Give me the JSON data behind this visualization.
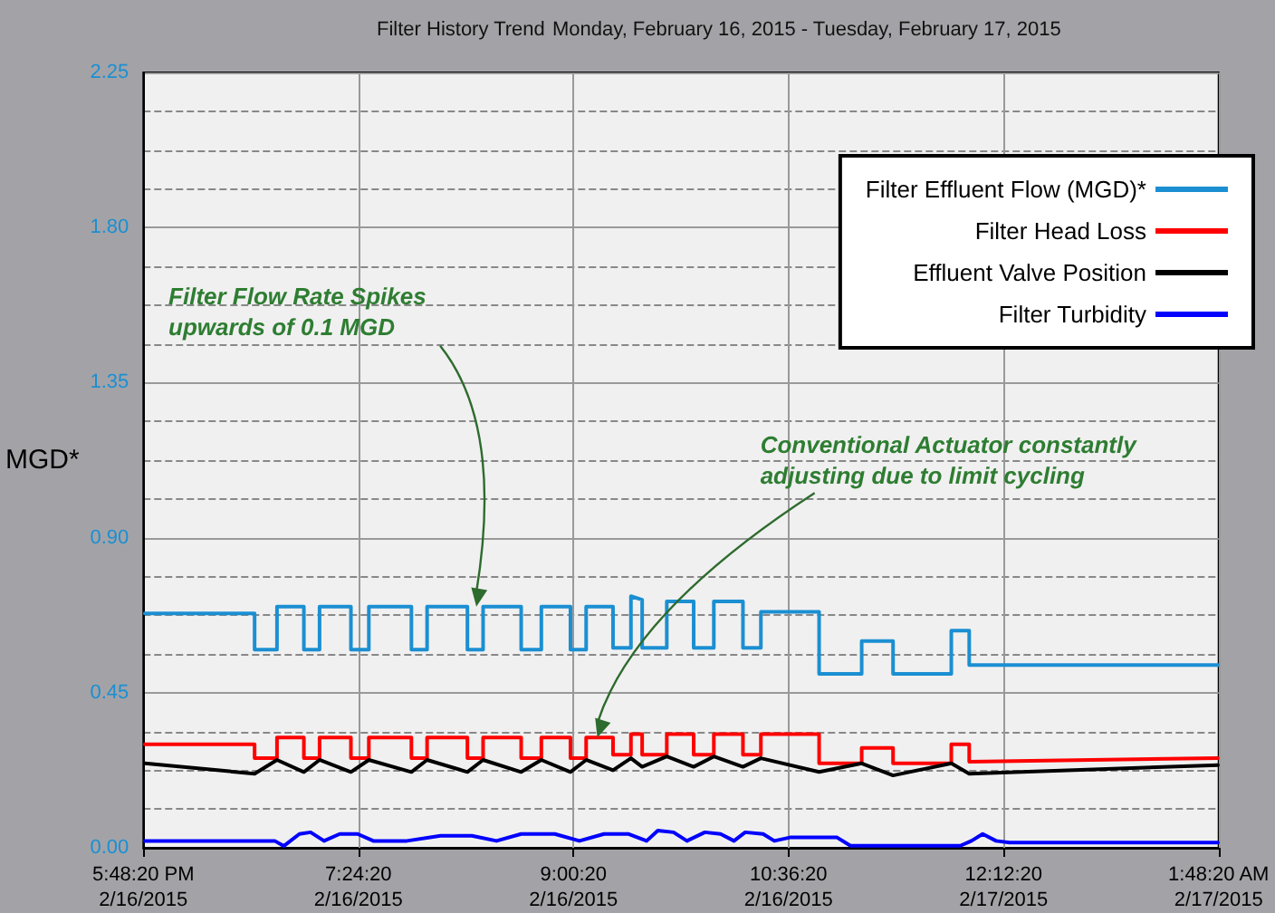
{
  "chart_data": {
    "type": "line",
    "title": "Filter History Trend",
    "subtitle": "Monday, February 16, 2015 - Tuesday, February 17, 2015",
    "ylabel": "MGD*",
    "xlim": [
      "2015-02-16T17:48:20",
      "2015-02-17T01:48:20"
    ],
    "xticks": [
      {
        "value": "2015-02-16T17:48:20",
        "label": "5:48:20 PM\n2/16/2015"
      },
      {
        "value": "2015-02-16T19:24:20",
        "label": "7:24:20\n2/16/2015"
      },
      {
        "value": "2015-02-16T21:00:20",
        "label": "9:00:20\n2/16/2015"
      },
      {
        "value": "2015-02-16T22:36:20",
        "label": "10:36:20\n2/16/2015"
      },
      {
        "value": "2015-02-17T00:12:20",
        "label": "12:12:20\n2/17/2015"
      },
      {
        "value": "2015-02-17T01:48:20",
        "label": "1:48:20 AM\n2/17/2015"
      }
    ],
    "ylim": [
      0,
      2.25
    ],
    "yticks": [
      {
        "value": 0,
        "label": "0.00"
      },
      {
        "value": 0.45,
        "label": "0.45"
      },
      {
        "value": 0.9,
        "label": "0.90"
      },
      {
        "value": 1.35,
        "label": "1.35"
      },
      {
        "value": 1.8,
        "label": "1.80"
      },
      {
        "value": 2.25,
        "label": "2.25"
      }
    ],
    "grid": true,
    "legend": "top right",
    "marker": "none",
    "line_style": "solid",
    "annotations": [
      {
        "text": "Filter Flow Rate Spikes upwards of 0.1 MGD",
        "x": "2015-02-16T20:17",
        "y": 0.7
      },
      {
        "text": "Conventional Actuator constantly adjusting due to limit cycling",
        "x": "2015-02-16T21:11",
        "y": 0.32
      }
    ],
    "series": [
      {
        "name": "Filter Effluent Flow (MGD)*",
        "color": "#1b8fd2",
        "x": [
          "2015-02-16T17:49",
          "2015-02-16T18:38",
          "2015-02-16T18:38",
          "2015-02-16T18:48",
          "2015-02-16T18:48",
          "2015-02-16T19:00",
          "2015-02-16T19:00",
          "2015-02-16T19:07",
          "2015-02-16T19:07",
          "2015-02-16T19:21",
          "2015-02-16T19:21",
          "2015-02-16T19:29",
          "2015-02-16T19:29",
          "2015-02-16T19:48",
          "2015-02-16T19:48",
          "2015-02-16T19:55",
          "2015-02-16T19:55",
          "2015-02-16T20:13",
          "2015-02-16T20:13",
          "2015-02-16T20:20",
          "2015-02-16T20:20",
          "2015-02-16T20:37",
          "2015-02-16T20:37",
          "2015-02-16T20:46",
          "2015-02-16T20:46",
          "2015-02-16T20:59",
          "2015-02-16T20:59",
          "2015-02-16T21:06",
          "2015-02-16T21:06",
          "2015-02-16T21:18",
          "2015-02-16T21:18",
          "2015-02-16T21:26",
          "2015-02-16T21:26",
          "2015-02-16T21:31",
          "2015-02-16T21:31",
          "2015-02-16T21:42",
          "2015-02-16T21:42",
          "2015-02-16T21:54",
          "2015-02-16T21:54",
          "2015-02-16T22:03",
          "2015-02-16T22:03",
          "2015-02-16T22:16",
          "2015-02-16T22:16",
          "2015-02-16T22:24",
          "2015-02-16T22:24",
          "2015-02-16T22:50",
          "2015-02-16T22:50",
          "2015-02-16T23:09",
          "2015-02-16T23:09",
          "2015-02-16T23:23",
          "2015-02-16T23:23",
          "2015-02-16T23:49",
          "2015-02-16T23:49",
          "2015-02-16T23:57",
          "2015-02-16T23:57",
          "2015-02-17T01:48"
        ],
        "values": [
          0.68,
          0.68,
          0.575,
          0.575,
          0.7,
          0.7,
          0.575,
          0.575,
          0.7,
          0.7,
          0.575,
          0.575,
          0.7,
          0.7,
          0.575,
          0.575,
          0.7,
          0.7,
          0.575,
          0.575,
          0.7,
          0.7,
          0.575,
          0.575,
          0.7,
          0.7,
          0.575,
          0.575,
          0.7,
          0.7,
          0.58,
          0.58,
          0.73,
          0.72,
          0.58,
          0.58,
          0.715,
          0.715,
          0.58,
          0.58,
          0.715,
          0.715,
          0.58,
          0.58,
          0.685,
          0.685,
          0.505,
          0.505,
          0.6,
          0.6,
          0.505,
          0.505,
          0.63,
          0.63,
          0.53,
          0.53
        ]
      },
      {
        "name": "Filter Head Loss",
        "color": "#ff0000",
        "x": [
          "2015-02-16T17:49",
          "2015-02-16T18:38",
          "2015-02-16T18:38",
          "2015-02-16T18:48",
          "2015-02-16T18:48",
          "2015-02-16T19:00",
          "2015-02-16T19:00",
          "2015-02-16T19:07",
          "2015-02-16T19:07",
          "2015-02-16T19:21",
          "2015-02-16T19:21",
          "2015-02-16T19:29",
          "2015-02-16T19:29",
          "2015-02-16T19:48",
          "2015-02-16T19:48",
          "2015-02-16T19:55",
          "2015-02-16T19:55",
          "2015-02-16T20:13",
          "2015-02-16T20:13",
          "2015-02-16T20:20",
          "2015-02-16T20:20",
          "2015-02-16T20:37",
          "2015-02-16T20:37",
          "2015-02-16T20:46",
          "2015-02-16T20:46",
          "2015-02-16T20:59",
          "2015-02-16T20:59",
          "2015-02-16T21:06",
          "2015-02-16T21:06",
          "2015-02-16T21:18",
          "2015-02-16T21:18",
          "2015-02-16T21:26",
          "2015-02-16T21:26",
          "2015-02-16T21:31",
          "2015-02-16T21:31",
          "2015-02-16T21:42",
          "2015-02-16T21:42",
          "2015-02-16T21:54",
          "2015-02-16T21:54",
          "2015-02-16T22:03",
          "2015-02-16T22:03",
          "2015-02-16T22:16",
          "2015-02-16T22:16",
          "2015-02-16T22:24",
          "2015-02-16T22:24",
          "2015-02-16T22:50",
          "2015-02-16T22:50",
          "2015-02-16T23:09",
          "2015-02-16T23:09",
          "2015-02-16T23:23",
          "2015-02-16T23:23",
          "2015-02-16T23:49",
          "2015-02-16T23:49",
          "2015-02-16T23:57",
          "2015-02-16T23:57",
          "2015-02-17T01:48"
        ],
        "values": [
          0.3,
          0.3,
          0.26,
          0.26,
          0.32,
          0.32,
          0.26,
          0.26,
          0.32,
          0.32,
          0.26,
          0.26,
          0.32,
          0.32,
          0.26,
          0.26,
          0.32,
          0.32,
          0.26,
          0.26,
          0.32,
          0.32,
          0.26,
          0.26,
          0.32,
          0.32,
          0.26,
          0.26,
          0.32,
          0.32,
          0.27,
          0.27,
          0.33,
          0.33,
          0.27,
          0.27,
          0.33,
          0.33,
          0.27,
          0.27,
          0.33,
          0.33,
          0.27,
          0.27,
          0.33,
          0.33,
          0.245,
          0.245,
          0.29,
          0.29,
          0.245,
          0.245,
          0.3,
          0.3,
          0.25,
          0.26
        ]
      },
      {
        "name": "Effluent Valve Position",
        "color": "#000000",
        "x": [
          "2015-02-16T17:49",
          "2015-02-16T18:38",
          "2015-02-16T18:48",
          "2015-02-16T19:00",
          "2015-02-16T19:07",
          "2015-02-16T19:21",
          "2015-02-16T19:29",
          "2015-02-16T19:48",
          "2015-02-16T19:55",
          "2015-02-16T20:13",
          "2015-02-16T20:20",
          "2015-02-16T20:37",
          "2015-02-16T20:46",
          "2015-02-16T20:59",
          "2015-02-16T21:06",
          "2015-02-16T21:18",
          "2015-02-16T21:26",
          "2015-02-16T21:31",
          "2015-02-16T21:42",
          "2015-02-16T21:54",
          "2015-02-16T22:03",
          "2015-02-16T22:16",
          "2015-02-16T22:24",
          "2015-02-16T22:50",
          "2015-02-16T23:09",
          "2015-02-16T23:23",
          "2015-02-16T23:49",
          "2015-02-16T23:57",
          "2015-02-17T01:48"
        ],
        "values": [
          0.245,
          0.215,
          0.255,
          0.22,
          0.255,
          0.22,
          0.255,
          0.22,
          0.255,
          0.22,
          0.255,
          0.22,
          0.255,
          0.22,
          0.255,
          0.225,
          0.26,
          0.235,
          0.265,
          0.235,
          0.265,
          0.235,
          0.26,
          0.22,
          0.245,
          0.21,
          0.245,
          0.215,
          0.24
        ]
      },
      {
        "name": "Filter Turbidity",
        "color": "#0000ff",
        "x": [
          "2015-02-16T17:49",
          "2015-02-16T18:47",
          "2015-02-16T18:51",
          "2015-02-16T18:58",
          "2015-02-16T19:03",
          "2015-02-16T19:09",
          "2015-02-16T19:16",
          "2015-02-16T19:24",
          "2015-02-16T19:31",
          "2015-02-16T19:46",
          "2015-02-16T20:01",
          "2015-02-16T20:15",
          "2015-02-16T20:26",
          "2015-02-16T20:37",
          "2015-02-16T20:52",
          "2015-02-16T21:03",
          "2015-02-16T21:14",
          "2015-02-16T21:25",
          "2015-02-16T21:33",
          "2015-02-16T21:38",
          "2015-02-16T21:45",
          "2015-02-16T21:51",
          "2015-02-16T21:59",
          "2015-02-16T22:06",
          "2015-02-16T22:12",
          "2015-02-16T22:17",
          "2015-02-16T22:25",
          "2015-02-16T22:30",
          "2015-02-16T22:37",
          "2015-02-16T22:58",
          "2015-02-16T23:04",
          "2015-02-16T23:53",
          "2015-02-16T23:58",
          "2015-02-17T00:03",
          "2015-02-17T00:09",
          "2015-02-17T00:15",
          "2015-02-17T01:48"
        ],
        "values": [
          0.02,
          0.02,
          0.005,
          0.04,
          0.045,
          0.02,
          0.04,
          0.04,
          0.02,
          0.02,
          0.035,
          0.035,
          0.02,
          0.04,
          0.04,
          0.02,
          0.04,
          0.04,
          0.02,
          0.05,
          0.045,
          0.02,
          0.045,
          0.04,
          0.02,
          0.045,
          0.04,
          0.02,
          0.03,
          0.03,
          0.006,
          0.006,
          0.02,
          0.04,
          0.02,
          0.015,
          0.015
        ]
      }
    ]
  }
}
